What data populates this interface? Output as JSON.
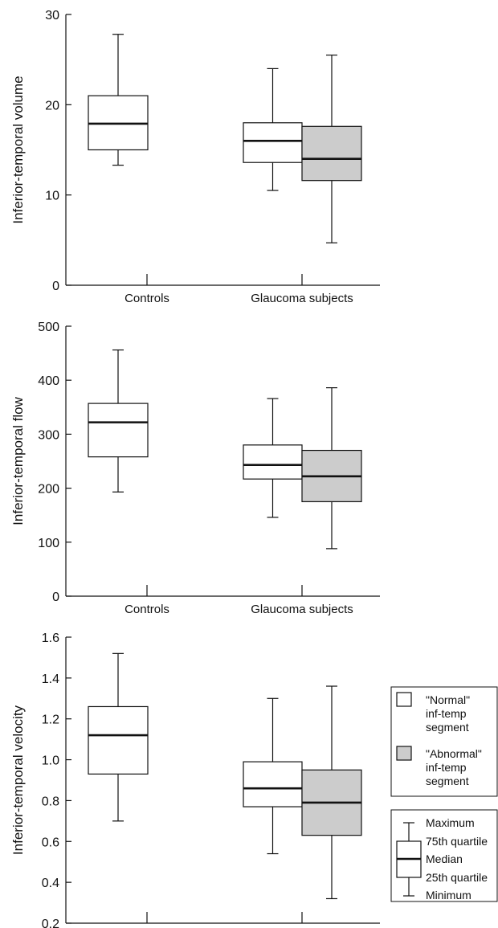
{
  "colors": {
    "normal": "#ffffff",
    "abnormal": "#cccccc",
    "line": "#111111"
  },
  "legend": {
    "normal": [
      "\"Normal\"",
      "inf-temp",
      "segment"
    ],
    "abnormal": [
      "\"Abnormal\"",
      "inf-temp",
      "segment"
    ],
    "key": [
      "Maximum",
      "75th quartile",
      "Median",
      "25th quartile",
      "Minimum"
    ]
  },
  "chart_data": [
    {
      "type": "box",
      "ylabel": "Inferior-temporal volume",
      "ylim": [
        0,
        30
      ],
      "ticks": [
        0,
        10,
        20,
        30
      ],
      "tick_labels": [
        "0",
        "10",
        "20",
        "30"
      ],
      "categories": [
        "Controls",
        "Glaucoma subjects"
      ],
      "boxes": [
        {
          "group": "Controls",
          "kind": "normal",
          "min": 13.3,
          "q1": 15.0,
          "median": 17.9,
          "q3": 21.0,
          "max": 27.8
        },
        {
          "group": "Glaucoma subjects",
          "kind": "normal",
          "min": 10.5,
          "q1": 13.6,
          "median": 16.0,
          "q3": 18.0,
          "max": 24.0
        },
        {
          "group": "Glaucoma subjects",
          "kind": "abnormal",
          "min": 4.7,
          "q1": 11.6,
          "median": 14.0,
          "q3": 17.6,
          "max": 25.5
        }
      ]
    },
    {
      "type": "box",
      "ylabel": "Inferior-temporal flow",
      "ylim": [
        0,
        500
      ],
      "ticks": [
        0,
        100,
        200,
        300,
        400,
        500
      ],
      "tick_labels": [
        "0",
        "100",
        "200",
        "300",
        "400",
        "500"
      ],
      "categories": [
        "Controls",
        "Glaucoma subjects"
      ],
      "boxes": [
        {
          "group": "Controls",
          "kind": "normal",
          "min": 193,
          "q1": 258,
          "median": 322,
          "q3": 357,
          "max": 456
        },
        {
          "group": "Glaucoma subjects",
          "kind": "normal",
          "min": 146,
          "q1": 217,
          "median": 243,
          "q3": 280,
          "max": 366
        },
        {
          "group": "Glaucoma subjects",
          "kind": "abnormal",
          "min": 88,
          "q1": 175,
          "median": 222,
          "q3": 270,
          "max": 386
        }
      ]
    },
    {
      "type": "box",
      "ylabel": "Inferior-temporal velocity",
      "ylim": [
        0.2,
        1.6
      ],
      "ticks": [
        0.2,
        0.4,
        0.6,
        0.8,
        1.0,
        1.2,
        1.4,
        1.6
      ],
      "tick_labels": [
        "0.2",
        "0.4",
        "0.6",
        "0.8",
        "1.0",
        "1.2",
        "1.4",
        "1.6"
      ],
      "categories": [
        "Controls",
        "Glaucoma subjects"
      ],
      "boxes": [
        {
          "group": "Controls",
          "kind": "normal",
          "min": 0.7,
          "q1": 0.93,
          "median": 1.12,
          "q3": 1.26,
          "max": 1.52
        },
        {
          "group": "Glaucoma subjects",
          "kind": "normal",
          "min": 0.54,
          "q1": 0.77,
          "median": 0.86,
          "q3": 0.99,
          "max": 1.3
        },
        {
          "group": "Glaucoma subjects",
          "kind": "abnormal",
          "min": 0.32,
          "q1": 0.63,
          "median": 0.79,
          "q3": 0.95,
          "max": 1.36
        }
      ]
    }
  ]
}
